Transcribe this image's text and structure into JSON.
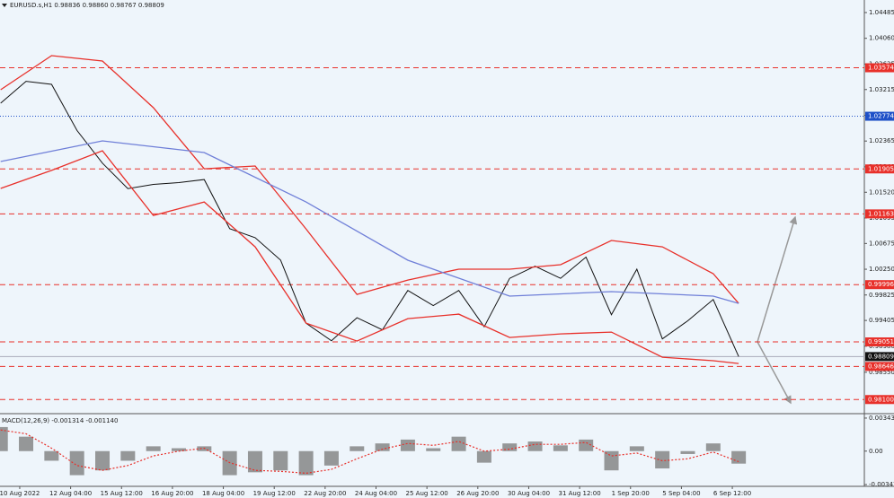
{
  "chart_data": [
    {
      "type": "line",
      "title": "EURUSD.s,H1  0.98836 0.98860 0.98767 0.98809",
      "xlim": [
        -12.4,
        531
      ],
      "ylim": [
        0.97882,
        1.04692
      ],
      "yticks": [
        {
          "value": 1.04485,
          "label": "1.04485"
        },
        {
          "value": 1.0406,
          "label": "1.04060"
        },
        {
          "value": 1.03635,
          "label": "1.03635"
        },
        {
          "value": 1.03215,
          "label": "1.03215"
        },
        {
          "value": 1.0279,
          "label": "1.02790"
        },
        {
          "value": 1.02365,
          "label": "1.02365"
        },
        {
          "value": 1.0194,
          "label": "1.01940"
        },
        {
          "value": 1.0152,
          "label": "1.01520"
        },
        {
          "value": 1.01095,
          "label": "1.01095"
        },
        {
          "value": 1.00675,
          "label": "1.00675"
        },
        {
          "value": 1.0025,
          "label": "1.00250"
        },
        {
          "value": 0.99825,
          "label": "0.99825"
        },
        {
          "value": 0.99405,
          "label": "0.99405"
        },
        {
          "value": 0.9898,
          "label": "0.98980"
        },
        {
          "value": 0.9855,
          "label": "0.98550"
        }
      ],
      "levels": [
        {
          "value": 1.03574,
          "label": "1.03574",
          "color": "#e8302a",
          "style": "dashed"
        },
        {
          "value": 1.02774,
          "label": "1.02774",
          "color": "#1e50c8",
          "style": "dotted"
        },
        {
          "value": 1.01905,
          "label": "1.01905",
          "color": "#e8302a",
          "style": "dashed"
        },
        {
          "value": 1.01163,
          "label": "1.01163",
          "color": "#e8302a",
          "style": "dashed"
        },
        {
          "value": 0.99996,
          "label": "0.99996",
          "color": "#e8302a",
          "style": "dashed"
        },
        {
          "value": 0.99051,
          "label": "0.99051",
          "color": "#e8302a",
          "style": "dashed"
        },
        {
          "value": 0.98809,
          "label": "0.98809",
          "color": "#111111",
          "style": "solid"
        },
        {
          "value": 0.98646,
          "label": "0.98646",
          "color": "#e8302a",
          "style": "dashed"
        },
        {
          "value": 0.981,
          "label": "0.98100",
          "color": "#e8302a",
          "style": "dashed"
        }
      ],
      "series": [
        {
          "name": "Close",
          "color": "#111111",
          "x": [
            -12,
            4,
            20,
            36,
            52,
            68,
            84,
            100,
            116,
            132,
            148,
            164,
            180,
            196,
            212,
            228,
            244,
            260,
            276,
            292,
            308,
            324,
            340,
            356,
            372,
            388,
            404,
            420,
            436,
            452
          ],
          "values": [
            1.0299,
            1.0335,
            1.033,
            1.0254,
            1.02,
            1.0158,
            1.0165,
            1.0168,
            1.0173,
            1.0092,
            1.0077,
            1.004,
            0.9936,
            0.9907,
            0.9945,
            0.9925,
            0.999,
            0.9965,
            0.999,
            0.993,
            1.001,
            1.003,
            1.001,
            1.0045,
            0.995,
            1.0025,
            0.991,
            0.994,
            0.9975,
            0.9881
          ]
        },
        {
          "name": "Upper band",
          "color": "#e8302a",
          "x": [
            -12,
            20,
            52,
            84,
            116,
            148,
            180,
            212,
            244,
            276,
            308,
            340,
            372,
            404,
            436,
            452
          ],
          "values": [
            1.03212,
            1.03774,
            1.03685,
            1.02915,
            1.01908,
            1.01953,
            1.00916,
            0.99835,
            1.00072,
            1.0025,
            1.0025,
            1.00324,
            1.00724,
            1.0062,
            1.00176,
            0.99687
          ]
        },
        {
          "name": "Lower band",
          "color": "#e8302a",
          "x": [
            -12,
            20,
            52,
            84,
            116,
            148,
            180,
            212,
            244,
            276,
            308,
            340,
            372,
            404,
            436,
            452
          ],
          "values": [
            1.01583,
            1.0188,
            1.02205,
            1.01138,
            1.0136,
            1.0062,
            0.99361,
            0.99065,
            0.99435,
            0.99509,
            0.99124,
            0.99183,
            0.99213,
            0.98799,
            0.9874,
            0.98695
          ]
        },
        {
          "name": "MA",
          "color": "#6f7fd8",
          "x": [
            -12,
            52,
            116,
            180,
            244,
            308,
            372,
            436,
            452
          ],
          "values": [
            1.02027,
            1.02367,
            1.02175,
            1.0136,
            1.00398,
            0.99806,
            0.9988,
            0.99806,
            0.99687
          ]
        }
      ]
    },
    {
      "type": "bar",
      "title": "MACD(12,26,9) -0.001314 -0.001140",
      "xlim": [
        -12.4,
        531
      ],
      "ylim": [
        -0.00366,
        0.0038
      ],
      "yticks": [
        0.003432,
        {
          "value": 0,
          "label": "0.00"
        },
        -0.003478
      ],
      "xticks": [
        {
          "value": 0,
          "label": "10 Aug 2022"
        },
        {
          "value": 32,
          "label": "12 Aug 04:00"
        },
        {
          "value": 64,
          "label": "15 Aug 12:00"
        },
        {
          "value": 96,
          "label": "16 Aug 20:00"
        },
        {
          "value": 128,
          "label": "18 Aug 04:00"
        },
        {
          "value": 160,
          "label": "19 Aug 12:00"
        },
        {
          "value": 192,
          "label": "22 Aug 20:00"
        },
        {
          "value": 224,
          "label": "24 Aug 04:00"
        },
        {
          "value": 256,
          "label": "25 Aug 12:00"
        },
        {
          "value": 288,
          "label": "26 Aug 20:00"
        },
        {
          "value": 320,
          "label": "30 Aug 04:00"
        },
        {
          "value": 352,
          "label": "31 Aug 12:00"
        },
        {
          "value": 384,
          "label": "1 Sep 20:00"
        },
        {
          "value": 416,
          "label": "5 Sep 04:00"
        },
        {
          "value": 448,
          "label": "6 Sep 12:00"
        }
      ],
      "x": [
        -12,
        4,
        20,
        36,
        52,
        68,
        84,
        100,
        116,
        132,
        148,
        164,
        180,
        196,
        212,
        228,
        244,
        260,
        276,
        292,
        308,
        324,
        340,
        356,
        372,
        388,
        404,
        420,
        436,
        452
      ],
      "series": [
        {
          "name": "MACD",
          "color": "#777777",
          "values": [
            0.0025,
            0.0015,
            -0.001,
            -0.0025,
            -0.002,
            -0.001,
            0.0005,
            0.0003,
            0.0005,
            -0.0025,
            -0.0022,
            -0.002,
            -0.0025,
            -0.0015,
            0.0005,
            0.0008,
            0.0012,
            0.0003,
            0.0015,
            -0.0012,
            0.0008,
            0.001,
            0.0006,
            0.0012,
            -0.002,
            0.0005,
            -0.0018,
            -0.0003,
            0.0008,
            -0.0013
          ]
        },
        {
          "name": "Signal",
          "color": "#e8302a",
          "values": [
            0.0022,
            0.0018,
            0.0003,
            -0.0015,
            -0.002,
            -0.0015,
            -0.0005,
            0,
            0.0003,
            -0.0012,
            -0.002,
            -0.0021,
            -0.0023,
            -0.0019,
            -0.0008,
            0.0002,
            0.0008,
            0.0006,
            0.001,
            0,
            0.0002,
            0.0007,
            0.0007,
            0.0009,
            -0.0005,
            -0.0002,
            -0.001,
            -0.0008,
            -0.0001,
            -0.0011
          ]
        }
      ]
    }
  ]
}
